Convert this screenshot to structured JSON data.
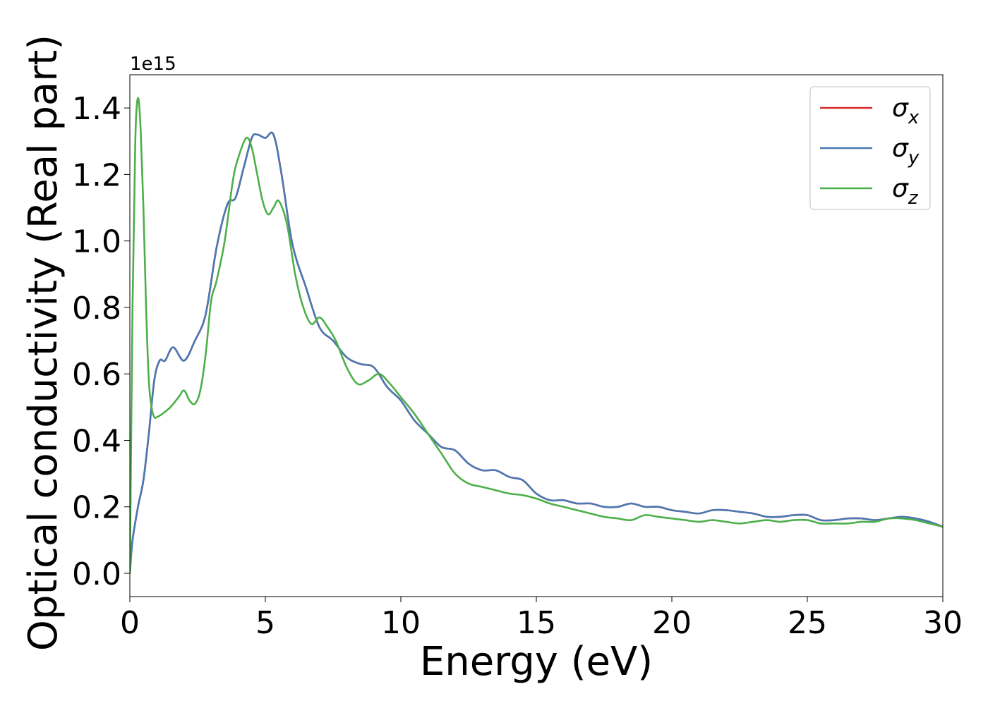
{
  "chart_data": {
    "type": "line",
    "xlabel": "Energy (eV)",
    "ylabel": "Optical conductivity (Real part)",
    "y_offset_label": "1e15",
    "xlim": [
      0,
      30
    ],
    "ylim": [
      -0.07,
      1.5
    ],
    "x_ticks": [
      0,
      5,
      10,
      15,
      20,
      25,
      30
    ],
    "x_tick_labels": [
      "0",
      "5",
      "10",
      "15",
      "20",
      "25",
      "30"
    ],
    "y_ticks": [
      0.0,
      0.2,
      0.4,
      0.6,
      0.8,
      1.0,
      1.2,
      1.4
    ],
    "y_tick_labels": [
      "0.0",
      "0.2",
      "0.4",
      "0.6",
      "0.8",
      "1.0",
      "1.2",
      "1.4"
    ],
    "grid": false,
    "legend_position": "top-right",
    "y_scale_factor": "1e15",
    "series": [
      {
        "name": "σx",
        "legend_symbol": "σ",
        "legend_subscript": "x",
        "color": "#d62728",
        "x": [
          0,
          0.1,
          0.3,
          0.5,
          0.7,
          0.9,
          1.1,
          1.3,
          1.6,
          2.0,
          2.4,
          2.8,
          3.2,
          3.6,
          3.9,
          4.2,
          4.5,
          4.7,
          5.0,
          5.3,
          5.6,
          6.0,
          6.5,
          7.0,
          7.5,
          8.0,
          8.5,
          9.0,
          9.5,
          10.0,
          10.5,
          11.0,
          11.5,
          12.0,
          12.5,
          13.0,
          13.5,
          14.0,
          14.5,
          15.0,
          15.5,
          16.0,
          16.5,
          17.0,
          17.5,
          18.0,
          18.5,
          19.0,
          19.5,
          20.0,
          20.5,
          21.0,
          21.5,
          22.0,
          22.5,
          23.0,
          23.5,
          24.0,
          24.5,
          25.0,
          25.5,
          26.0,
          26.5,
          27.0,
          27.5,
          28.0,
          28.5,
          29.0,
          29.5,
          30.0
        ],
        "y": [
          0.0,
          0.1,
          0.2,
          0.28,
          0.42,
          0.58,
          0.64,
          0.64,
          0.68,
          0.64,
          0.7,
          0.78,
          0.98,
          1.11,
          1.13,
          1.22,
          1.31,
          1.32,
          1.31,
          1.32,
          1.2,
          0.99,
          0.86,
          0.74,
          0.7,
          0.65,
          0.63,
          0.62,
          0.56,
          0.52,
          0.46,
          0.42,
          0.38,
          0.37,
          0.33,
          0.31,
          0.31,
          0.29,
          0.28,
          0.24,
          0.22,
          0.22,
          0.21,
          0.21,
          0.2,
          0.2,
          0.21,
          0.2,
          0.2,
          0.19,
          0.185,
          0.18,
          0.19,
          0.19,
          0.185,
          0.18,
          0.17,
          0.17,
          0.175,
          0.175,
          0.16,
          0.16,
          0.165,
          0.165,
          0.16,
          0.165,
          0.17,
          0.165,
          0.155,
          0.14
        ]
      },
      {
        "name": "σy",
        "legend_symbol": "σ",
        "legend_subscript": "y",
        "color": "#4a79b4",
        "x": [
          0,
          0.1,
          0.3,
          0.5,
          0.7,
          0.9,
          1.1,
          1.3,
          1.6,
          2.0,
          2.4,
          2.8,
          3.2,
          3.6,
          3.9,
          4.2,
          4.5,
          4.7,
          5.0,
          5.3,
          5.6,
          6.0,
          6.5,
          7.0,
          7.5,
          8.0,
          8.5,
          9.0,
          9.5,
          10.0,
          10.5,
          11.0,
          11.5,
          12.0,
          12.5,
          13.0,
          13.5,
          14.0,
          14.5,
          15.0,
          15.5,
          16.0,
          16.5,
          17.0,
          17.5,
          18.0,
          18.5,
          19.0,
          19.5,
          20.0,
          20.5,
          21.0,
          21.5,
          22.0,
          22.5,
          23.0,
          23.5,
          24.0,
          24.5,
          25.0,
          25.5,
          26.0,
          26.5,
          27.0,
          27.5,
          28.0,
          28.5,
          29.0,
          29.5,
          30.0
        ],
        "y": [
          0.0,
          0.1,
          0.2,
          0.28,
          0.42,
          0.58,
          0.64,
          0.64,
          0.68,
          0.64,
          0.7,
          0.78,
          0.98,
          1.11,
          1.13,
          1.22,
          1.31,
          1.32,
          1.31,
          1.32,
          1.2,
          0.99,
          0.86,
          0.74,
          0.7,
          0.65,
          0.63,
          0.62,
          0.56,
          0.52,
          0.46,
          0.42,
          0.38,
          0.37,
          0.33,
          0.31,
          0.31,
          0.29,
          0.28,
          0.24,
          0.22,
          0.22,
          0.21,
          0.21,
          0.2,
          0.2,
          0.21,
          0.2,
          0.2,
          0.19,
          0.185,
          0.18,
          0.19,
          0.19,
          0.185,
          0.18,
          0.17,
          0.17,
          0.175,
          0.175,
          0.16,
          0.16,
          0.165,
          0.165,
          0.16,
          0.165,
          0.17,
          0.165,
          0.155,
          0.14
        ]
      },
      {
        "name": "σz",
        "legend_symbol": "σ",
        "legend_subscript": "z",
        "color": "#4daf4a",
        "x": [
          0,
          0.1,
          0.2,
          0.3,
          0.4,
          0.5,
          0.6,
          0.7,
          0.8,
          0.9,
          1.0,
          1.2,
          1.5,
          1.8,
          2.0,
          2.2,
          2.4,
          2.6,
          2.8,
          3.0,
          3.2,
          3.5,
          3.8,
          4.0,
          4.3,
          4.5,
          4.7,
          4.9,
          5.1,
          5.3,
          5.5,
          5.8,
          6.1,
          6.4,
          6.7,
          7.0,
          7.3,
          7.6,
          8.0,
          8.4,
          8.8,
          9.2,
          9.6,
          10.0,
          10.5,
          11.0,
          11.5,
          12.0,
          12.5,
          13.0,
          13.5,
          14.0,
          14.5,
          15.0,
          15.5,
          16.0,
          16.5,
          17.0,
          17.5,
          18.0,
          18.5,
          19.0,
          19.5,
          20.0,
          20.5,
          21.0,
          21.5,
          22.0,
          22.5,
          23.0,
          23.5,
          24.0,
          24.5,
          25.0,
          25.5,
          26.0,
          26.5,
          27.0,
          27.5,
          28.0,
          28.5,
          29.0,
          29.5,
          30.0
        ],
        "y": [
          0.0,
          0.8,
          1.3,
          1.43,
          1.33,
          1.1,
          0.8,
          0.58,
          0.5,
          0.47,
          0.47,
          0.48,
          0.5,
          0.53,
          0.55,
          0.52,
          0.51,
          0.55,
          0.66,
          0.82,
          0.88,
          1.0,
          1.18,
          1.25,
          1.31,
          1.28,
          1.2,
          1.12,
          1.08,
          1.1,
          1.12,
          1.05,
          0.9,
          0.8,
          0.75,
          0.77,
          0.74,
          0.7,
          0.62,
          0.57,
          0.58,
          0.6,
          0.57,
          0.53,
          0.48,
          0.42,
          0.36,
          0.3,
          0.27,
          0.26,
          0.25,
          0.24,
          0.235,
          0.225,
          0.21,
          0.2,
          0.19,
          0.18,
          0.17,
          0.165,
          0.16,
          0.175,
          0.17,
          0.165,
          0.16,
          0.155,
          0.16,
          0.155,
          0.15,
          0.155,
          0.16,
          0.155,
          0.16,
          0.16,
          0.15,
          0.15,
          0.15,
          0.155,
          0.155,
          0.165,
          0.165,
          0.16,
          0.15,
          0.14
        ]
      }
    ]
  }
}
